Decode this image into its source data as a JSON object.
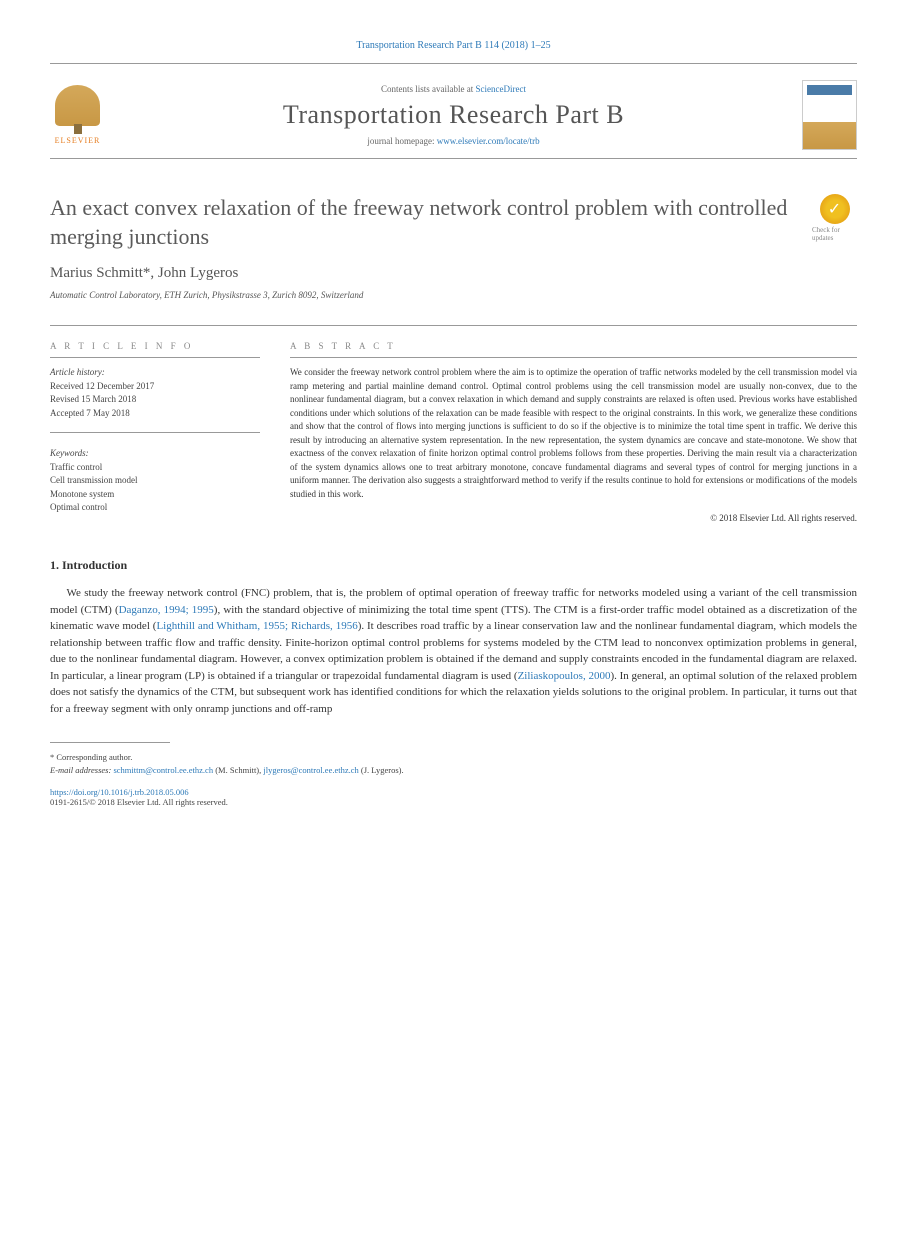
{
  "header": {
    "citation": "Transportation Research Part B 114 (2018) 1–25",
    "contents_prefix": "Contents lists available at ",
    "contents_link": "ScienceDirect",
    "journal_name": "Transportation Research Part B",
    "homepage_prefix": "journal homepage: ",
    "homepage_url": "www.elsevier.com/locate/trb",
    "publisher": "ELSEVIER"
  },
  "title": "An exact convex relaxation of the freeway network control problem with controlled merging junctions",
  "check_badge": "Check for updates",
  "authors": "Marius Schmitt*, John Lygeros",
  "affiliation": "Automatic Control Laboratory, ETH Zurich, Physikstrasse 3, Zurich 8092, Switzerland",
  "article_info": {
    "heading": "A R T I C L E   I N F O",
    "history_label": "Article history:",
    "received": "Received 12 December 2017",
    "revised": "Revised 15 March 2018",
    "accepted": "Accepted 7 May 2018",
    "keywords_label": "Keywords:",
    "keywords": [
      "Traffic control",
      "Cell transmission model",
      "Monotone system",
      "Optimal control"
    ]
  },
  "abstract": {
    "heading": "A B S T R A C T",
    "text": "We consider the freeway network control problem where the aim is to optimize the operation of traffic networks modeled by the cell transmission model via ramp metering and partial mainline demand control. Optimal control problems using the cell transmission model are usually non-convex, due to the nonlinear fundamental diagram, but a convex relaxation in which demand and supply constraints are relaxed is often used. Previous works have established conditions under which solutions of the relaxation can be made feasible with respect to the original constraints. In this work, we generalize these conditions and show that the control of flows into merging junctions is sufficient to do so if the objective is to minimize the total time spent in traffic. We derive this result by introducing an alternative system representation. In the new representation, the system dynamics are concave and state-monotone. We show that exactness of the convex relaxation of finite horizon optimal control problems follows from these properties. Deriving the main result via a characterization of the system dynamics allows one to treat arbitrary monotone, concave fundamental diagrams and several types of control for merging junctions in a uniform manner. The derivation also suggests a straightforward method to verify if the results continue to hold for extensions or modifications of the models studied in this work.",
    "copyright": "© 2018 Elsevier Ltd. All rights reserved."
  },
  "introduction": {
    "heading": "1. Introduction",
    "para1_pre": "We study the freeway network control (FNC) problem, that is, the problem of optimal operation of freeway traffic for networks modeled using a variant of the cell transmission model (CTM) (",
    "ref1": "Daganzo, 1994; 1995",
    "para1_mid1": "), with the standard objective of minimizing the total time spent (TTS). The CTM is a first-order traffic model obtained as a discretization of the kinematic wave model (",
    "ref2": "Lighthill and Whitham, 1955; Richards, 1956",
    "para1_mid2": "). It describes road traffic by a linear conservation law and the nonlinear fundamental diagram, which models the relationship between traffic flow and traffic density. Finite-horizon optimal control problems for systems modeled by the CTM lead to nonconvex optimization problems in general, due to the nonlinear fundamental diagram. However, a convex optimization problem is obtained if the demand and supply constraints encoded in the fundamental diagram are relaxed. In particular, a linear program (LP) is obtained if a triangular or trapezoidal fundamental diagram is used (",
    "ref3": "Ziliaskopoulos, 2000",
    "para1_end": "). In general, an optimal solution of the relaxed problem does not satisfy the dynamics of the CTM, but subsequent work has identified conditions for which the relaxation yields solutions to the original problem. In particular, it turns out that for a freeway segment with only onramp junctions and off-ramp"
  },
  "footnote": {
    "corresponding": "* Corresponding author.",
    "email_label": "E-mail addresses: ",
    "email1": "schmittm@control.ee.ethz.ch",
    "email1_name": " (M. Schmitt), ",
    "email2": "jlygeros@control.ee.ethz.ch",
    "email2_name": " (J. Lygeros)."
  },
  "footer": {
    "doi": "https://doi.org/10.1016/j.trb.2018.05.006",
    "issn": "0191-2615/© 2018 Elsevier Ltd. All rights reserved."
  }
}
